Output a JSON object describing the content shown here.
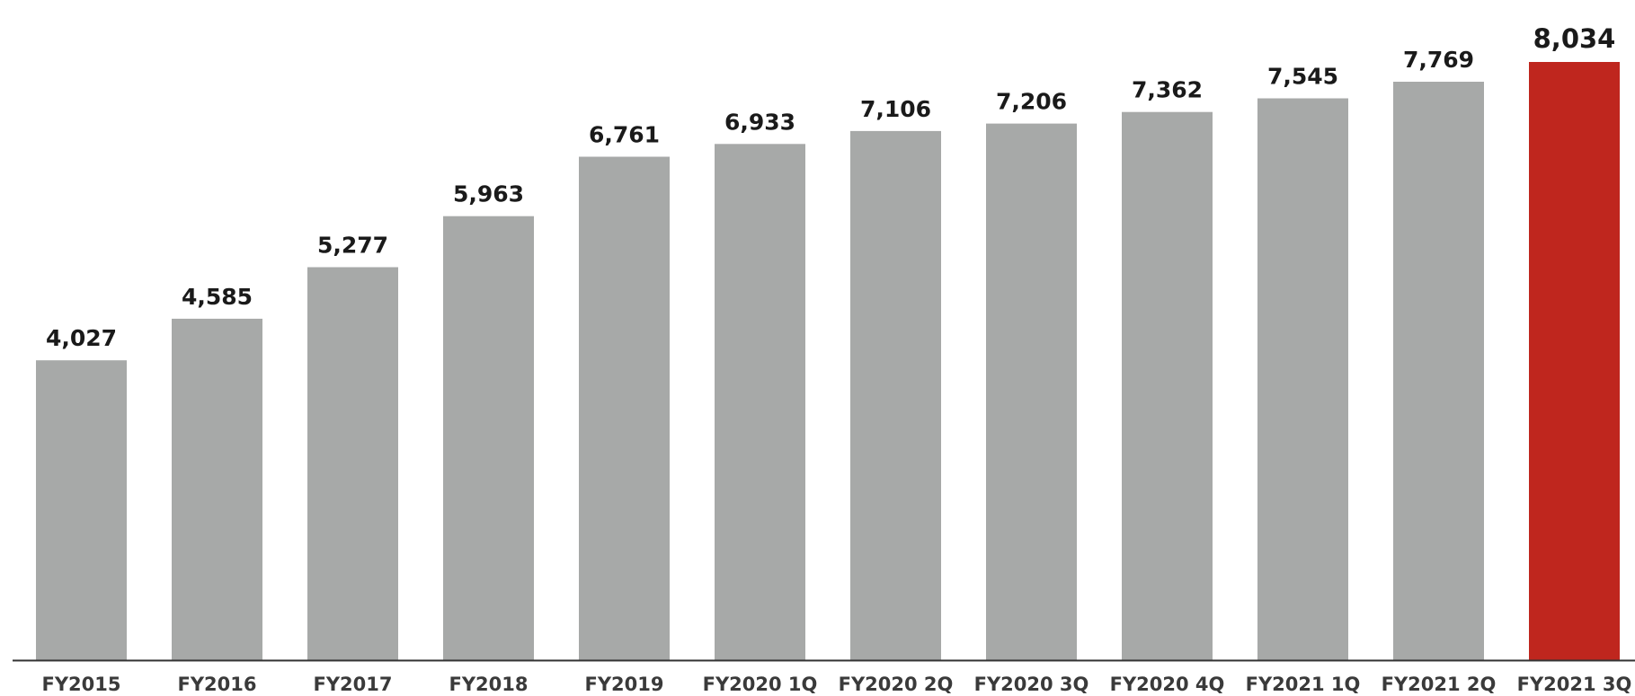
{
  "chart_data": {
    "type": "bar",
    "categories": [
      "FY2015",
      "FY2016",
      "FY2017",
      "FY2018",
      "FY2019",
      "FY2020 1Q",
      "FY2020 2Q",
      "FY2020 3Q",
      "FY2020 4Q",
      "FY2021 1Q",
      "FY2021 2Q",
      "FY2021 3Q"
    ],
    "series": [
      {
        "values": [
          4027,
          4585,
          5277,
          5963,
          6761,
          6933,
          7106,
          7206,
          7362,
          7545,
          7769,
          8034
        ]
      }
    ],
    "value_labels": [
      "4,027",
      "4,585",
      "5,277",
      "5,963",
      "6,761",
      "6,933",
      "7,106",
      "7,206",
      "7,362",
      "7,545",
      "7,769",
      "8,034"
    ],
    "title": "",
    "xlabel": "",
    "ylabel": "",
    "ylim": [
      0,
      8034
    ],
    "grid": false,
    "legend": "none",
    "highlight_index": 11,
    "colors": {
      "bar": "#a7a9a8",
      "highlight": "#bf261e",
      "axis": "#333333",
      "label": "#1a1a1a",
      "highlight_label": "#bf261e",
      "tick_label": "#3a3a3a"
    }
  }
}
